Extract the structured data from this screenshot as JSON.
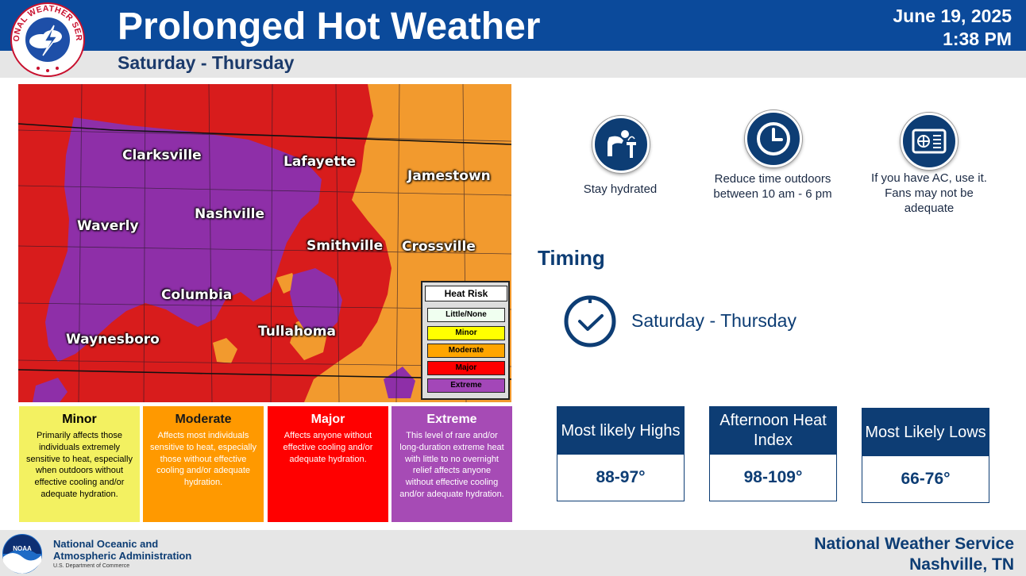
{
  "header": {
    "title": "Prolonged Hot Weather",
    "date": "June 19, 2025",
    "time": "1:38 PM",
    "subtitle": "Saturday - Thursday",
    "logo_text": "NATIONAL WEATHER SERVICE"
  },
  "map": {
    "cities": [
      "Clarksville",
      "Lafayette",
      "Jamestown",
      "Nashville",
      "Waverly",
      "Smithville",
      "Crossville",
      "Columbia",
      "Tullahoma",
      "Waynesboro"
    ],
    "legend": {
      "title": "Heat Risk",
      "items": [
        {
          "label": "Little/None",
          "color": "#f0fff0"
        },
        {
          "label": "Minor",
          "color": "#ffff00"
        },
        {
          "label": "Moderate",
          "color": "#ffa500"
        },
        {
          "label": "Major",
          "color": "#ff0000"
        },
        {
          "label": "Extreme",
          "color": "#a347b8"
        }
      ]
    },
    "colors": {
      "extreme": "#8e2fa8",
      "major": "#d81c1c",
      "moderate": "#f29a2e"
    }
  },
  "risk_levels": [
    {
      "name": "Minor",
      "text": "Primarily affects those individuals extremely sensitive to heat, especially when outdoors without effective cooling and/or adequate hydration.",
      "color": "#f3f161"
    },
    {
      "name": "Moderate",
      "text": "Affects most individuals sensitive to heat, especially those without effective cooling and/or adequate hydration.",
      "color": "#ff9900"
    },
    {
      "name": "Major",
      "text": "Affects anyone without effective cooling and/or adequate hydration.",
      "color": "#ff0000"
    },
    {
      "name": "Extreme",
      "text": "This level of rare and/or long-duration extreme heat with little to no overnight relief affects anyone without effective cooling and/or adequate hydration.",
      "color": "#a64bb5"
    }
  ],
  "tips": [
    {
      "icon": "drinking-fountain-icon",
      "label": "Stay hydrated"
    },
    {
      "icon": "clock-icon",
      "label": "Reduce time outdoors between 10 am - 6 pm"
    },
    {
      "icon": "air-conditioner-icon",
      "label": "If you have AC, use it. Fans may not be adequate"
    }
  ],
  "timing": {
    "title": "Timing",
    "icon": "clock-icon",
    "text": "Saturday - Thursday"
  },
  "stats": [
    {
      "label": "Most likely Highs",
      "value": "88-97°"
    },
    {
      "label": "Afternoon Heat Index",
      "value": "98-109°"
    },
    {
      "label": "Most Likely Lows",
      "value": "66-76°"
    }
  ],
  "footer": {
    "noaa_line1": "National Oceanic and",
    "noaa_line2": "Atmospheric Administration",
    "noaa_dept": "U.S. Department of Commerce",
    "noaa_logo_text": "NOAA",
    "nws_line1": "National Weather Service",
    "nws_line2": "Nashville, TN"
  }
}
